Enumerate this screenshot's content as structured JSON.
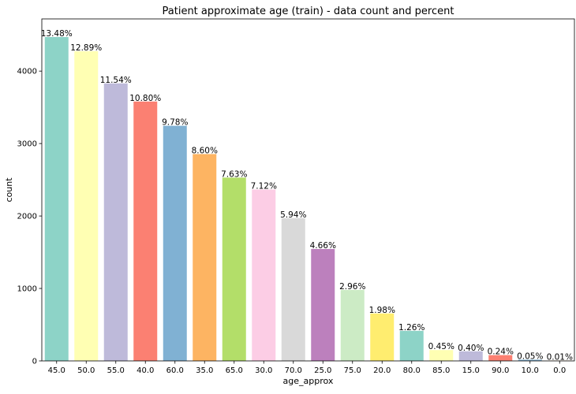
{
  "chart_data": {
    "type": "bar",
    "title": "Patient approximate age (train) - data count and percent",
    "xlabel": "age_approx",
    "ylabel": "count",
    "ylim": [
      0,
      4720
    ],
    "yticks": [
      0,
      1000,
      2000,
      3000,
      4000
    ],
    "grid": false,
    "legend": "none",
    "categories": [
      "45.0",
      "50.0",
      "55.0",
      "40.0",
      "60.0",
      "35.0",
      "65.0",
      "30.0",
      "70.0",
      "25.0",
      "75.0",
      "20.0",
      "80.0",
      "85.0",
      "15.0",
      "90.0",
      "10.0",
      "0.0"
    ],
    "values": [
      4470,
      4275,
      3830,
      3580,
      3245,
      2855,
      2530,
      2365,
      1970,
      1545,
      980,
      655,
      415,
      150,
      133,
      80,
      17,
      3
    ],
    "percent_labels": [
      "13.48%",
      "12.89%",
      "11.54%",
      "10.80%",
      "9.78%",
      "8.60%",
      "7.63%",
      "7.12%",
      "5.94%",
      "4.66%",
      "2.96%",
      "1.98%",
      "1.26%",
      "0.45%",
      "0.40%",
      "0.24%",
      "0.05%",
      "0.01%"
    ],
    "colors": [
      "#8dd3c7",
      "#ffffb3",
      "#bebada",
      "#fb8072",
      "#80b1d3",
      "#fdb462",
      "#b3de69",
      "#fccde5",
      "#d9d9d9",
      "#bc80bd",
      "#ccebc5",
      "#ffed6f",
      "#8dd3c7",
      "#ffffb3",
      "#bebada",
      "#fb8072",
      "#80b1d3",
      "#fdb462"
    ]
  }
}
